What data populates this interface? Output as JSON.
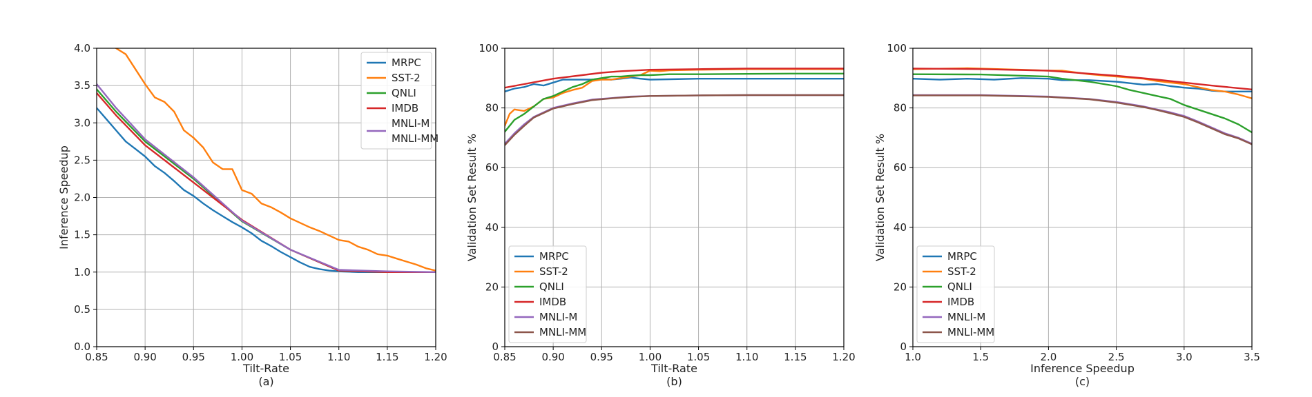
{
  "colors": {
    "MRPC": "#1f77b4",
    "SST-2": "#ff7f0e",
    "QNLI": "#2ca02c",
    "IMDB": "#d62728",
    "MNLI-M": "#9467bd",
    "MNLI-MM": "#8c564b"
  },
  "chart_data": [
    {
      "type": "line",
      "caption": "(a)",
      "xlabel": "Tilt-Rate",
      "ylabel": "Inference Speedup",
      "xlim": [
        0.85,
        1.2
      ],
      "ylim": [
        0,
        4.0
      ],
      "xticks": [
        "0.85",
        "0.90",
        "0.95",
        "1.00",
        "1.05",
        "1.10",
        "1.15",
        "1.20"
      ],
      "yticks": [
        "0.0",
        "0.5",
        "1.0",
        "1.5",
        "2.0",
        "2.5",
        "3.0",
        "3.5",
        "4.0"
      ],
      "grid": true,
      "legend_position": "top-right",
      "legend_entries": [
        "MRPC",
        "SST-2",
        "QNLI",
        "IMDB",
        "MNLI-M\nMNLI-MM"
      ],
      "series": [
        {
          "name": "MRPC",
          "x": [
            0.85,
            0.86,
            0.87,
            0.88,
            0.89,
            0.9,
            0.91,
            0.92,
            0.93,
            0.94,
            0.95,
            0.96,
            0.97,
            0.98,
            0.99,
            1.0,
            1.01,
            1.02,
            1.03,
            1.04,
            1.05,
            1.06,
            1.07,
            1.08,
            1.09,
            1.1,
            1.12,
            1.15,
            1.2
          ],
          "y": [
            3.2,
            3.05,
            2.9,
            2.75,
            2.65,
            2.55,
            2.42,
            2.33,
            2.22,
            2.1,
            2.02,
            1.92,
            1.83,
            1.75,
            1.67,
            1.6,
            1.52,
            1.42,
            1.35,
            1.27,
            1.2,
            1.13,
            1.07,
            1.04,
            1.02,
            1.01,
            1.0,
            1.0,
            1.0
          ]
        },
        {
          "name": "SST-2",
          "x": [
            0.87,
            0.88,
            0.89,
            0.9,
            0.91,
            0.92,
            0.93,
            0.94,
            0.95,
            0.96,
            0.97,
            0.98,
            0.99,
            1.0,
            1.01,
            1.02,
            1.03,
            1.04,
            1.05,
            1.06,
            1.07,
            1.08,
            1.09,
            1.1,
            1.11,
            1.12,
            1.13,
            1.14,
            1.15,
            1.16,
            1.17,
            1.18,
            1.19,
            1.2
          ],
          "y": [
            4.0,
            3.92,
            3.72,
            3.52,
            3.34,
            3.28,
            3.15,
            2.9,
            2.8,
            2.67,
            2.47,
            2.38,
            2.38,
            2.1,
            2.05,
            1.92,
            1.87,
            1.8,
            1.72,
            1.66,
            1.6,
            1.55,
            1.49,
            1.43,
            1.41,
            1.34,
            1.3,
            1.24,
            1.22,
            1.18,
            1.14,
            1.1,
            1.05,
            1.02
          ]
        },
        {
          "name": "QNLI",
          "x": [
            0.85,
            0.87,
            0.9,
            0.95,
            1.0,
            1.05,
            1.1,
            1.15,
            1.2
          ],
          "y": [
            3.45,
            3.15,
            2.75,
            2.25,
            1.68,
            1.3,
            1.02,
            1.0,
            1.0
          ]
        },
        {
          "name": "IMDB",
          "x": [
            0.85,
            0.87,
            0.9,
            0.95,
            1.0,
            1.05,
            1.1,
            1.15,
            1.2
          ],
          "y": [
            3.4,
            3.1,
            2.7,
            2.2,
            1.7,
            1.3,
            1.02,
            1.0,
            1.0
          ]
        },
        {
          "name": "MNLI-M",
          "x": [
            0.85,
            0.87,
            0.9,
            0.95,
            1.0,
            1.05,
            1.1,
            1.15,
            1.2
          ],
          "y": [
            3.52,
            3.2,
            2.78,
            2.27,
            1.69,
            1.3,
            1.03,
            1.01,
            1.0
          ]
        }
      ]
    },
    {
      "type": "line",
      "caption": "(b)",
      "xlabel": "Tilt-Rate",
      "ylabel": "Validation Set Result %",
      "xlim": [
        0.85,
        1.2
      ],
      "ylim": [
        0,
        100
      ],
      "xticks": [
        "0.85",
        "0.90",
        "0.95",
        "1.00",
        "1.05",
        "1.10",
        "1.15",
        "1.20"
      ],
      "yticks": [
        "0",
        "20",
        "40",
        "60",
        "80",
        "100"
      ],
      "grid": true,
      "legend_position": "bottom-left",
      "legend_entries": [
        "MRPC",
        "SST-2",
        "QNLI",
        "IMDB",
        "MNLI-M",
        "MNLI-MM"
      ],
      "series": [
        {
          "name": "MRPC",
          "x": [
            0.85,
            0.86,
            0.87,
            0.88,
            0.89,
            0.9,
            0.91,
            0.92,
            0.93,
            0.94,
            0.95,
            0.96,
            0.97,
            0.98,
            0.99,
            1.0,
            1.02,
            1.05,
            1.1,
            1.15,
            1.2
          ],
          "y": [
            85.5,
            86.5,
            87,
            88,
            87.5,
            88.5,
            89.5,
            89.5,
            89.5,
            89.5,
            89.8,
            89.5,
            89.8,
            90.2,
            89.8,
            89.5,
            89.6,
            89.8,
            89.8,
            89.8,
            89.8
          ]
        },
        {
          "name": "SST-2",
          "x": [
            0.85,
            0.855,
            0.86,
            0.87,
            0.88,
            0.89,
            0.9,
            0.91,
            0.92,
            0.93,
            0.94,
            0.95,
            0.96,
            0.97,
            0.98,
            0.99,
            1.0,
            1.01,
            1.02,
            1.05,
            1.1,
            1.15,
            1.2
          ],
          "y": [
            74,
            78,
            79.5,
            79,
            80.5,
            83,
            83.5,
            85,
            86,
            86.8,
            89,
            89.5,
            89.5,
            90,
            90.5,
            91,
            92.5,
            92.3,
            92.6,
            92.8,
            93,
            93,
            93
          ]
        },
        {
          "name": "QNLI",
          "x": [
            0.85,
            0.86,
            0.87,
            0.88,
            0.89,
            0.9,
            0.91,
            0.92,
            0.93,
            0.94,
            0.95,
            0.96,
            0.97,
            0.98,
            0.99,
            1.0,
            1.02,
            1.05,
            1.1,
            1.15,
            1.2
          ],
          "y": [
            72,
            76,
            78,
            80.5,
            83,
            84,
            85.5,
            87,
            88,
            89.5,
            90,
            90.5,
            90.5,
            90.8,
            91,
            91,
            91.3,
            91.3,
            91.4,
            91.5,
            91.5
          ]
        },
        {
          "name": "IMDB",
          "x": [
            0.85,
            0.87,
            0.9,
            0.93,
            0.95,
            0.97,
            1.0,
            1.05,
            1.1,
            1.15,
            1.2
          ],
          "y": [
            86.8,
            88,
            89.8,
            91,
            91.8,
            92.3,
            92.8,
            93,
            93.2,
            93.2,
            93.2
          ]
        },
        {
          "name": "MNLI-M",
          "x": [
            0.85,
            0.86,
            0.87,
            0.88,
            0.89,
            0.9,
            0.92,
            0.94,
            0.96,
            0.98,
            1.0,
            1.05,
            1.1,
            1.15,
            1.2
          ],
          "y": [
            68,
            71.5,
            74.5,
            77,
            78.5,
            80,
            81.5,
            82.8,
            83.3,
            83.8,
            84,
            84.2,
            84.3,
            84.3,
            84.3
          ]
        },
        {
          "name": "MNLI-MM",
          "x": [
            0.85,
            0.86,
            0.87,
            0.88,
            0.89,
            0.9,
            0.92,
            0.94,
            0.96,
            0.98,
            1.0,
            1.05,
            1.1,
            1.15,
            1.2
          ],
          "y": [
            67.5,
            71,
            74,
            76.8,
            78.3,
            79.8,
            81.3,
            82.6,
            83.2,
            83.7,
            84,
            84.2,
            84.3,
            84.3,
            84.3
          ]
        }
      ]
    },
    {
      "type": "line",
      "caption": "(c)",
      "xlabel": "Inference Speedup",
      "ylabel": "Validation Set Result %",
      "xlim": [
        1.0,
        3.5
      ],
      "ylim": [
        0,
        100
      ],
      "xticks": [
        "1.0",
        "1.5",
        "2.0",
        "2.5",
        "3.0",
        "3.5"
      ],
      "yticks": [
        "0",
        "20",
        "40",
        "60",
        "80",
        "100"
      ],
      "grid": true,
      "legend_position": "bottom-left",
      "legend_entries": [
        "MRPC",
        "SST-2",
        "QNLI",
        "IMDB",
        "MNLI-M",
        "MNLI-MM"
      ],
      "series": [
        {
          "name": "MRPC",
          "x": [
            1.0,
            1.2,
            1.4,
            1.6,
            1.8,
            2.0,
            2.1,
            2.3,
            2.5,
            2.6,
            2.7,
            2.8,
            2.9,
            3.0,
            3.1,
            3.2,
            3.3,
            3.5
          ],
          "y": [
            89.8,
            89.5,
            89.8,
            89.5,
            90,
            89.8,
            89.3,
            89.3,
            88.8,
            88.3,
            87.8,
            88,
            87.3,
            86.8,
            86.5,
            85.8,
            85.5,
            85.5
          ]
        },
        {
          "name": "SST-2",
          "x": [
            1.0,
            1.4,
            1.8,
            2.0,
            2.1,
            2.3,
            2.5,
            2.7,
            2.8,
            2.9,
            3.0,
            3.1,
            3.2,
            3.3,
            3.4,
            3.5
          ],
          "y": [
            93,
            93.3,
            92.8,
            92.5,
            92.5,
            91.3,
            90.5,
            89.8,
            89,
            88.5,
            88,
            87,
            86,
            85.5,
            84.5,
            83.2
          ]
        },
        {
          "name": "QNLI",
          "x": [
            1.0,
            1.5,
            2.0,
            2.1,
            2.3,
            2.5,
            2.6,
            2.7,
            2.8,
            2.9,
            3.0,
            3.1,
            3.2,
            3.3,
            3.4,
            3.5
          ],
          "y": [
            91.3,
            91.2,
            90.5,
            89.8,
            88.8,
            87.3,
            86,
            85,
            84,
            83,
            81,
            79.5,
            78,
            76.5,
            74.5,
            71.8
          ]
        },
        {
          "name": "IMDB",
          "x": [
            1.0,
            1.5,
            2.0,
            2.5,
            2.8,
            3.0,
            3.2,
            3.5
          ],
          "y": [
            93.2,
            93,
            92.5,
            90.8,
            89.5,
            88.5,
            87.5,
            86.2
          ]
        },
        {
          "name": "MNLI-M",
          "x": [
            1.0,
            1.5,
            2.0,
            2.3,
            2.5,
            2.7,
            2.8,
            2.9,
            3.0,
            3.1,
            3.2,
            3.3,
            3.4,
            3.5
          ],
          "y": [
            84.3,
            84.3,
            83.8,
            83,
            82,
            80.5,
            79.5,
            78.5,
            77.3,
            75.5,
            73.5,
            71.5,
            70,
            68
          ]
        },
        {
          "name": "MNLI-MM",
          "x": [
            1.0,
            1.5,
            2.0,
            2.3,
            2.5,
            2.7,
            2.8,
            2.9,
            3.0,
            3.1,
            3.2,
            3.3,
            3.4,
            3.5
          ],
          "y": [
            84.2,
            84.2,
            83.7,
            82.9,
            81.8,
            80.3,
            79.3,
            78.2,
            77,
            75.2,
            73.2,
            71.2,
            69.8,
            67.8
          ]
        }
      ]
    }
  ]
}
